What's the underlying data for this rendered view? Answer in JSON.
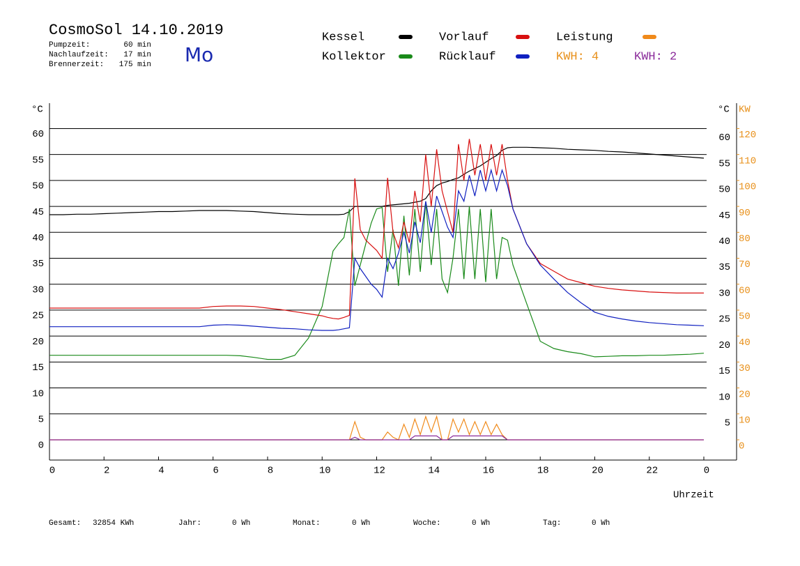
{
  "chart_data": {
    "type": "line",
    "title": "CosmoSol 14.10.2019",
    "weekday": "Mo",
    "info": [
      {
        "label": "Pumpzeit:",
        "value": "60 min"
      },
      {
        "label": "Nachlaufzeit:",
        "value": "17 min"
      },
      {
        "label": "Brennerzeit:",
        "value": "175 min"
      }
    ],
    "notes": [
      {
        "text": "KWH: 4",
        "color": "#e8901a"
      },
      {
        "text": "KWH: 2",
        "color": "#8a2a9a"
      }
    ],
    "x_label": "Uhrzeit",
    "y_label": "°C",
    "y_right_label": "°C",
    "y2_label": "KW",
    "xlim": [
      0,
      24
    ],
    "xticks": [
      0,
      2,
      4,
      6,
      8,
      10,
      12,
      14,
      16,
      18,
      20,
      22,
      {
        "value": 24,
        "label": "0"
      }
    ],
    "ylim": [
      -3.9,
      64.9
    ],
    "yticks": [
      0,
      5,
      10,
      15,
      20,
      25,
      30,
      35,
      40,
      45,
      50,
      55,
      60
    ],
    "y_right_ticks": [
      5,
      10,
      15,
      20,
      25,
      30,
      35,
      40,
      45,
      50,
      55,
      60
    ],
    "y2lim": [
      -7.8,
      129.8
    ],
    "y2ticks": [
      0,
      10,
      20,
      30,
      40,
      50,
      60,
      70,
      80,
      90,
      100,
      110,
      120
    ],
    "grid": true,
    "x": [
      0,
      0.5,
      1,
      1.5,
      2,
      2.5,
      3,
      3.5,
      4,
      4.5,
      5,
      5.5,
      6,
      6.5,
      7,
      7.5,
      8,
      8.5,
      9,
      9.5,
      10,
      10.2,
      10.4,
      10.6,
      10.8,
      11.0,
      11.2,
      11.4,
      11.6,
      11.8,
      12.0,
      12.2,
      12.4,
      12.6,
      12.8,
      13.0,
      13.2,
      13.4,
      13.6,
      13.8,
      14.0,
      14.2,
      14.4,
      14.6,
      14.8,
      15.0,
      15.2,
      15.4,
      15.6,
      15.8,
      16.0,
      16.2,
      16.4,
      16.6,
      16.8,
      17.0,
      17.5,
      18,
      18.5,
      19,
      19.5,
      20,
      20.5,
      21,
      21.5,
      22,
      22.5,
      23,
      23.5,
      24
    ],
    "series": [
      {
        "name": "Kessel",
        "color": "#000000",
        "values": [
          43.4,
          43.4,
          43.5,
          43.5,
          43.6,
          43.7,
          43.8,
          43.9,
          44,
          44,
          44.1,
          44.2,
          44.2,
          44.2,
          44.1,
          44,
          43.8,
          43.6,
          43.5,
          43.4,
          43.4,
          43.4,
          43.4,
          43.4,
          43.5,
          44,
          45,
          45,
          45,
          45,
          45,
          45,
          45.2,
          45.3,
          45.4,
          45.5,
          45.6,
          45.8,
          46,
          46.5,
          48,
          49,
          49.5,
          49.8,
          50.2,
          50.5,
          51.2,
          51.8,
          52.3,
          52.8,
          53.5,
          54.2,
          54.8,
          55.8,
          56.3,
          56.4,
          56.4,
          56.3,
          56.2,
          56,
          55.9,
          55.8,
          55.6,
          55.5,
          55.3,
          55.1,
          54.9,
          54.7,
          54.5,
          54.3
        ]
      },
      {
        "name": "Kollektor",
        "color": "#1a8a1a",
        "values": [
          16.3,
          16.3,
          16.3,
          16.3,
          16.3,
          16.3,
          16.3,
          16.3,
          16.3,
          16.3,
          16.3,
          16.3,
          16.3,
          16.3,
          16.2,
          15.9,
          15.5,
          15.5,
          16.3,
          19.6,
          25.7,
          31,
          36.4,
          37.8,
          39,
          44.5,
          29.7,
          33.7,
          37.8,
          41.8,
          44.5,
          44.8,
          32.4,
          40.5,
          29.7,
          43.2,
          31.7,
          44.5,
          32.4,
          45.9,
          33.7,
          44.5,
          31,
          28.4,
          35.1,
          44.5,
          31,
          45,
          31,
          44.5,
          30.4,
          44.5,
          31,
          39,
          38.5,
          33.7,
          26.3,
          19,
          17.6,
          17,
          16.6,
          16,
          16.1,
          16.2,
          16.2,
          16.3,
          16.3,
          16.4,
          16.5,
          16.7
        ]
      },
      {
        "name": "Vorlauf",
        "color": "#d81010",
        "values": [
          25.4,
          25.4,
          25.4,
          25.4,
          25.4,
          25.4,
          25.4,
          25.4,
          25.4,
          25.4,
          25.4,
          25.4,
          25.7,
          25.8,
          25.8,
          25.7,
          25.4,
          25.1,
          24.7,
          24.3,
          23.9,
          23.6,
          23.4,
          23.3,
          23.6,
          24,
          50.4,
          40.5,
          38.5,
          37.5,
          36.5,
          35,
          50.5,
          40,
          37,
          42,
          38,
          48,
          42,
          55,
          45,
          56,
          48,
          44,
          40,
          57,
          50,
          58,
          51,
          57,
          50,
          57,
          51,
          57,
          50,
          44.5,
          37.8,
          34,
          32.5,
          31,
          30.3,
          29.6,
          29.2,
          28.9,
          28.7,
          28.5,
          28.4,
          28.3,
          28.3,
          28.3
        ]
      },
      {
        "name": "Rücklauf",
        "color": "#1020c0",
        "values": [
          21.8,
          21.8,
          21.8,
          21.8,
          21.8,
          21.8,
          21.8,
          21.8,
          21.8,
          21.8,
          21.8,
          21.8,
          22.1,
          22.2,
          22.1,
          21.9,
          21.7,
          21.5,
          21.4,
          21.2,
          21.1,
          21.1,
          21.1,
          21.2,
          21.4,
          21.6,
          35,
          33,
          31.5,
          30,
          29,
          27.5,
          35,
          33,
          36,
          40,
          36,
          42,
          38,
          46,
          40,
          47,
          44,
          41,
          39,
          48,
          46,
          51,
          47,
          52,
          48,
          52,
          48,
          52,
          49,
          44.5,
          37.8,
          33.7,
          31,
          28.4,
          26.4,
          24.6,
          23.8,
          23.3,
          22.9,
          22.6,
          22.4,
          22.2,
          22.1,
          22
        ]
      },
      {
        "name": "Leistung",
        "color": "#f08a1a",
        "axis": "y2",
        "values": [
          0,
          0,
          0,
          0,
          0,
          0,
          0,
          0,
          0,
          0,
          0,
          0,
          0,
          0,
          0,
          0,
          0,
          0,
          0,
          0,
          0,
          0,
          0,
          0,
          0,
          0,
          7,
          1,
          0,
          0,
          0,
          0,
          3,
          1,
          0,
          6,
          1,
          8,
          2,
          9,
          3,
          9,
          0,
          0,
          8,
          3,
          8,
          2,
          7,
          2,
          7,
          2,
          6,
          2,
          0,
          0,
          0,
          0,
          0,
          0,
          0,
          0,
          0,
          0,
          0,
          0,
          0,
          0,
          0,
          0
        ]
      },
      {
        "color": "#8a2a9a",
        "axis": "y2",
        "values": [
          0,
          0,
          0,
          0,
          0,
          0,
          0,
          0,
          0,
          0,
          0,
          0,
          0,
          0,
          0,
          0,
          0,
          0,
          0,
          0,
          0,
          0,
          0,
          0,
          0,
          0,
          1,
          0,
          0,
          0,
          0,
          0,
          0,
          0,
          0,
          0,
          0,
          1.5,
          1.5,
          1.5,
          1.5,
          1.5,
          0,
          0,
          1.5,
          1.5,
          1.5,
          1.5,
          1.5,
          1.5,
          1.5,
          1.5,
          1.5,
          1.5,
          0,
          0,
          0,
          0,
          0,
          0,
          0,
          0,
          0,
          0,
          0,
          0,
          0,
          0,
          0,
          0
        ]
      }
    ],
    "totals": [
      {
        "label": "Gesamt:",
        "value": "32854 KWh"
      },
      {
        "label": "Jahr:",
        "value": "0 Wh"
      },
      {
        "label": "Monat:",
        "value": "0 Wh"
      },
      {
        "label": "Woche:",
        "value": "0 Wh"
      },
      {
        "label": "Tag:",
        "value": "0 Wh"
      }
    ]
  }
}
